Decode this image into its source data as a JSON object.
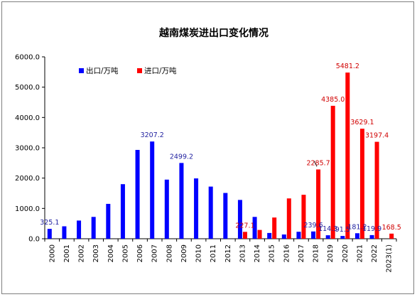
{
  "chart_data": {
    "type": "bar",
    "title": "越南煤炭进出口变化情况",
    "xlabel": "",
    "ylabel": "",
    "ylim": [
      0,
      6000
    ],
    "yticks": [
      "0.0",
      "1000.0",
      "2000.0",
      "3000.0",
      "4000.0",
      "5000.0",
      "6000.0"
    ],
    "grid": false,
    "legend_position": "top-left",
    "categories": [
      "2000",
      "2001",
      "2002",
      "2003",
      "2004",
      "2005",
      "2006",
      "2007",
      "2008",
      "2009",
      "2010",
      "2011",
      "2012",
      "2013",
      "2014",
      "2015",
      "2016",
      "2017",
      "2018",
      "2019",
      "2020",
      "2021",
      "2022",
      "2023(1)"
    ],
    "series": [
      {
        "name": "出口/万吨",
        "color": "#0000ff",
        "values": [
          325.1,
          410,
          600,
          720,
          1150,
          1800,
          2930,
          3207.2,
          1950,
          2499.2,
          1990,
          1720,
          1510,
          1280,
          720,
          190,
          140,
          230,
          239.6,
          114.3,
          91.5,
          181.2,
          119.9,
          null
        ],
        "labels": [
          "325.1",
          null,
          null,
          null,
          null,
          null,
          null,
          "3207.2",
          null,
          "2499.2",
          null,
          null,
          null,
          null,
          null,
          null,
          null,
          null,
          "239.6",
          "114.3",
          "91.5",
          "181.2",
          "119.9",
          null
        ]
      },
      {
        "name": "进口/万吨",
        "color": "#ff0000",
        "values": [
          null,
          null,
          null,
          null,
          null,
          null,
          null,
          null,
          null,
          null,
          null,
          null,
          null,
          227.1,
          290,
          700,
          1330,
          1450,
          2285.7,
          4385.0,
          5481.2,
          3629.1,
          3197.4,
          168.5
        ],
        "labels": [
          null,
          null,
          null,
          null,
          null,
          null,
          null,
          null,
          null,
          null,
          null,
          null,
          null,
          "227.1",
          null,
          null,
          null,
          null,
          "2285.7",
          "4385.0",
          "5481.2",
          "3629.1",
          "3197.4",
          "168.5"
        ]
      }
    ]
  }
}
